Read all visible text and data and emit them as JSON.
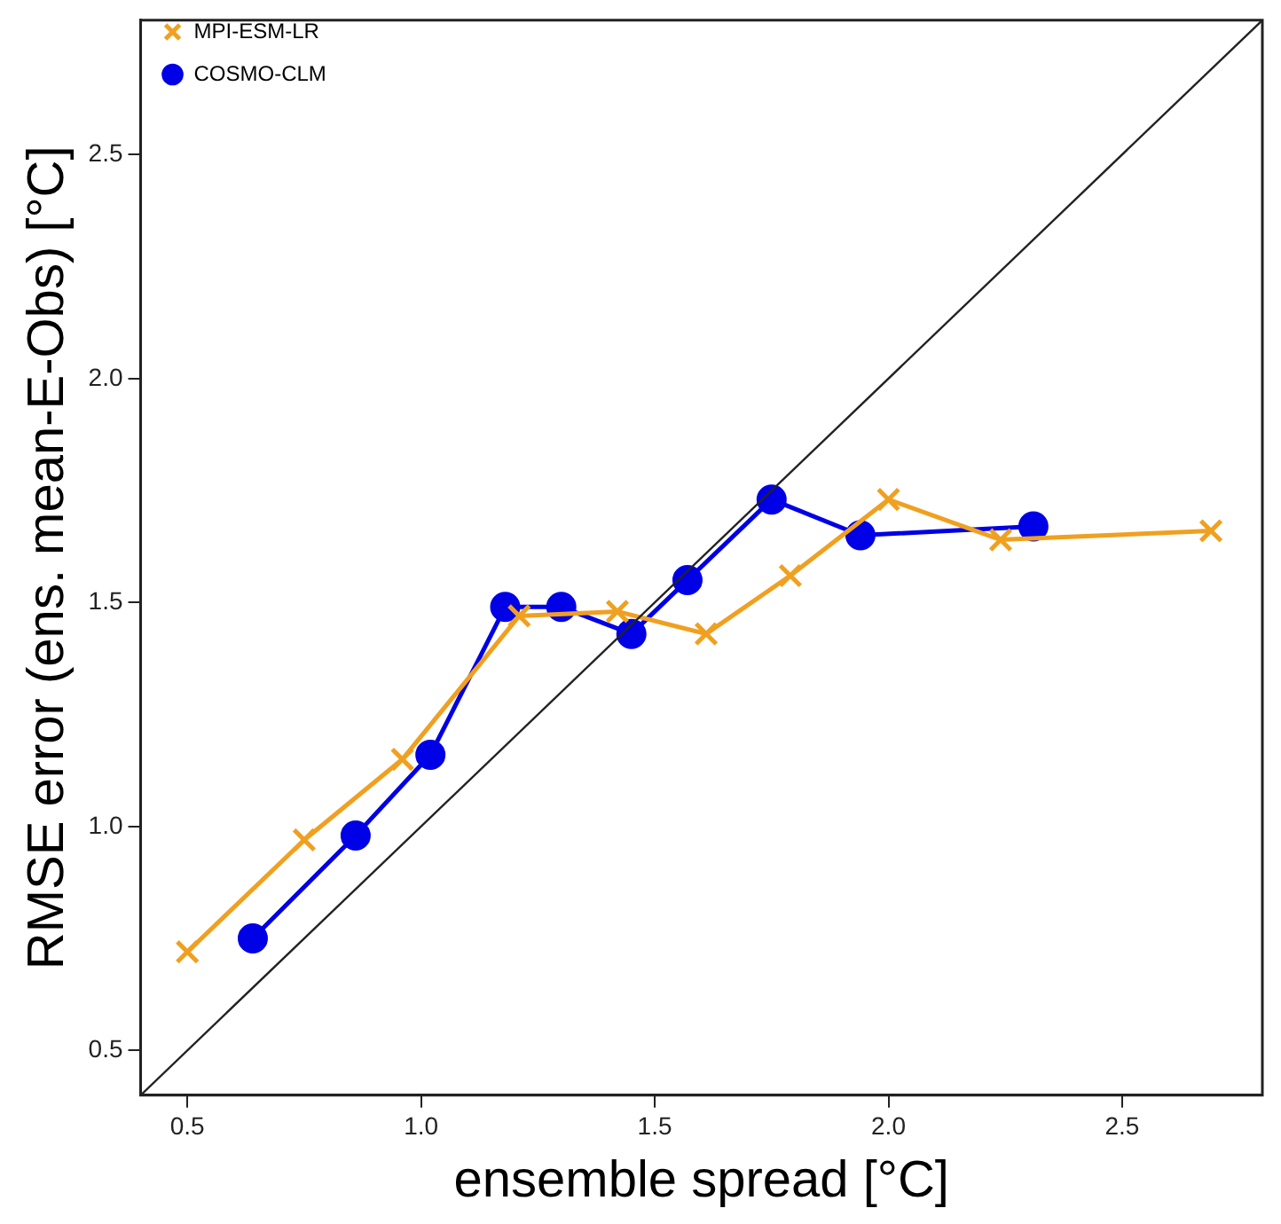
{
  "chart_data": {
    "type": "line",
    "xlabel": "ensemble spread [°C]",
    "ylabel": "RMSE error (ens. mean-E-Obs) [°C]",
    "xlim": [
      0.4,
      2.8
    ],
    "xticks": [
      {
        "value": 0.5,
        "label": "0.5"
      },
      {
        "value": 1.0,
        "label": "1.0"
      },
      {
        "value": 1.5,
        "label": "1.5"
      },
      {
        "value": 2.0,
        "label": "2.0"
      },
      {
        "value": 2.5,
        "label": "2.5"
      }
    ],
    "ylim": [
      0.4,
      2.8
    ],
    "yticks": [
      {
        "value": 0.5,
        "label": "0.5"
      },
      {
        "value": 1.0,
        "label": "1.0"
      },
      {
        "value": 1.5,
        "label": "1.5"
      },
      {
        "value": 2.0,
        "label": "2.0"
      },
      {
        "value": 2.5,
        "label": "2.5"
      }
    ],
    "grid": false,
    "legend": "top left",
    "line_style": "solid",
    "series": [
      {
        "name": "COSMO-CLM",
        "color": "#0000e6",
        "marker": "circle",
        "x": [
          0.64,
          0.86,
          1.02,
          1.18,
          1.3,
          1.45,
          1.57,
          1.75,
          1.94,
          2.31
        ],
        "values": [
          0.75,
          0.98,
          1.16,
          1.49,
          1.49,
          1.43,
          1.55,
          1.73,
          1.65,
          1.67
        ]
      },
      {
        "name": "MPI-ESM-LR",
        "color": "#f0a020",
        "marker": "cross",
        "x": [
          0.5,
          0.75,
          0.96,
          1.21,
          1.42,
          1.61,
          1.79,
          2.0,
          2.24,
          2.69
        ],
        "values": [
          0.72,
          0.97,
          1.15,
          1.47,
          1.48,
          1.43,
          1.56,
          1.73,
          1.64,
          1.66
        ]
      },
      {
        "color": "#222222",
        "marker": "none",
        "x": [
          0.4,
          2.8
        ],
        "values": [
          0.4,
          2.8
        ]
      }
    ]
  }
}
